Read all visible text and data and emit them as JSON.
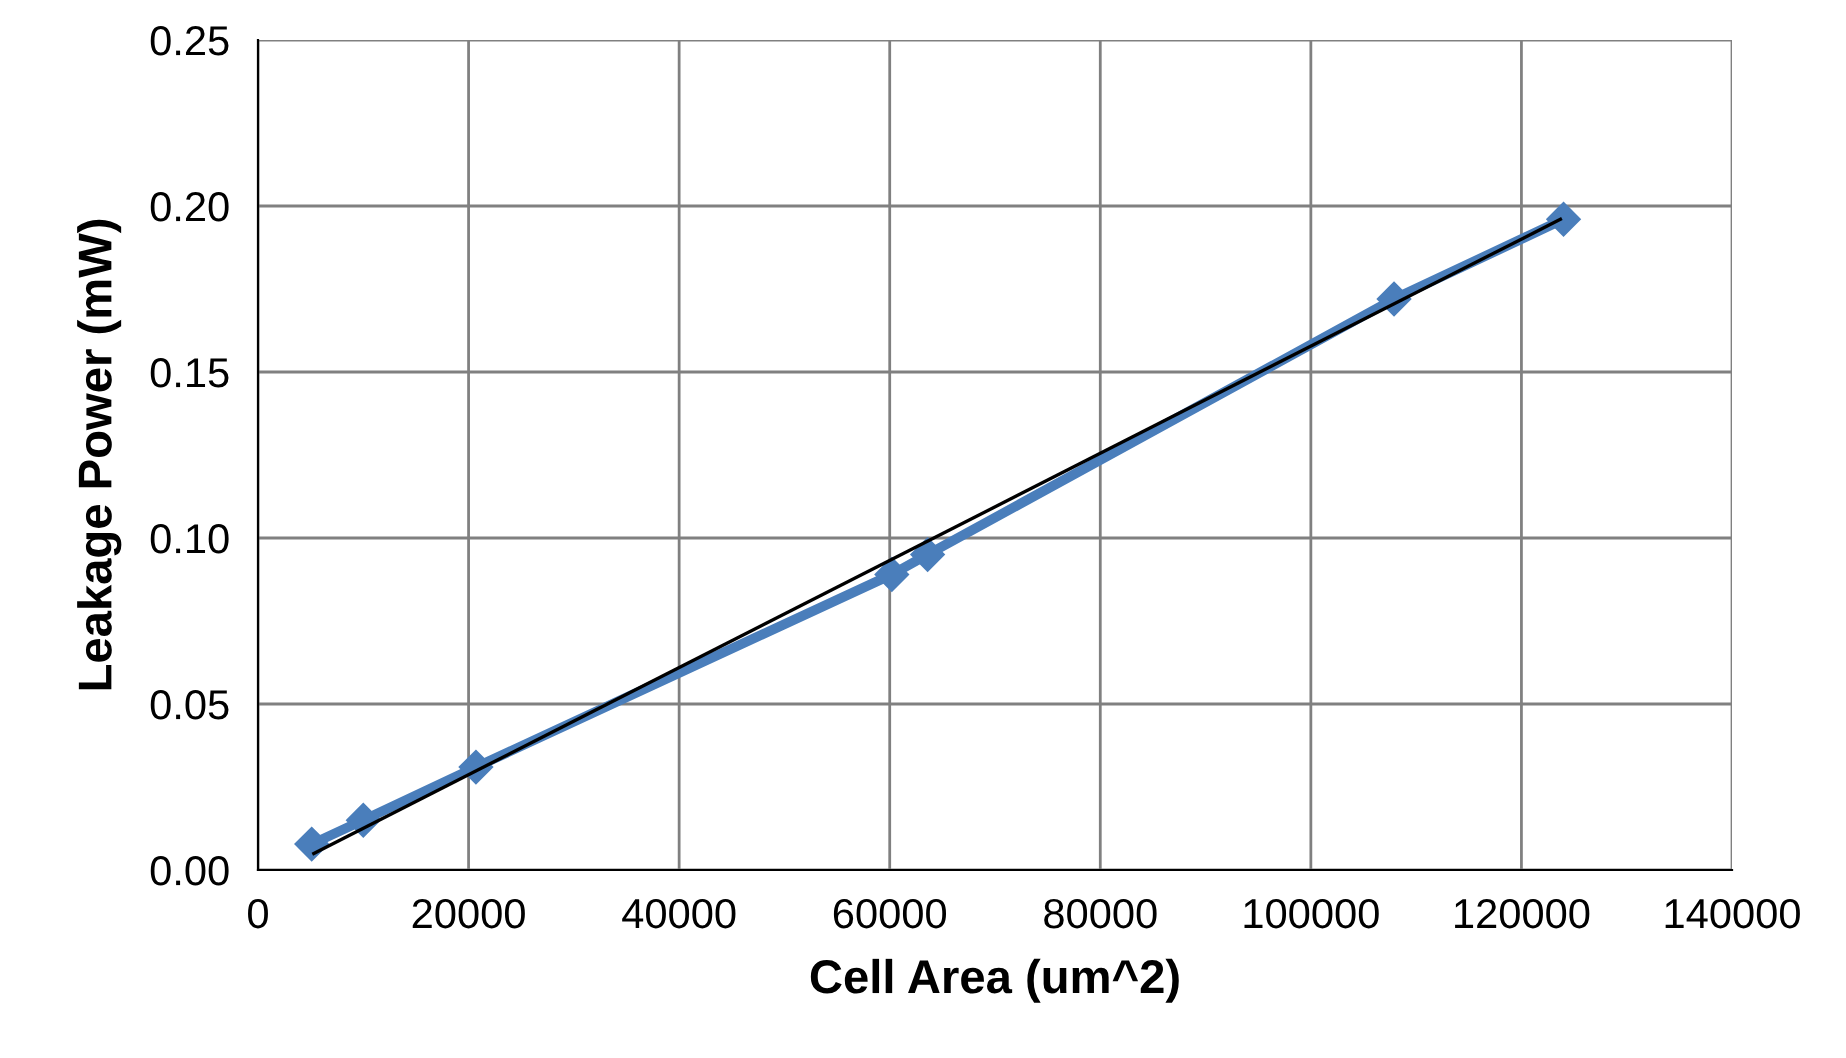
{
  "chart_data": {
    "type": "line",
    "xlabel": "Cell Area (um^2)",
    "ylabel": "Leakage Power (mW)",
    "series": [
      {
        "color": "#4a7ebb",
        "marker": "diamond",
        "x": [
          5100,
          10000,
          20700,
          60200,
          63600,
          107900,
          124000
        ],
        "values": [
          0.0078,
          0.015,
          0.031,
          0.089,
          0.095,
          0.172,
          0.196
        ]
      },
      {
        "color": "#000000",
        "marker": "none",
        "x": [
          5300,
          123700
        ],
        "values": [
          0.005,
          0.196
        ]
      }
    ],
    "xlim": [
      0,
      140000
    ],
    "xticks": [
      0,
      20000,
      40000,
      60000,
      80000,
      100000,
      120000,
      140000
    ],
    "ylim": [
      0,
      0.25
    ],
    "yticks": [
      {
        "value": 0,
        "label": "0.00"
      },
      {
        "value": 0.05,
        "label": "0.05"
      },
      {
        "value": 0.1,
        "label": "0.10"
      },
      {
        "value": 0.15,
        "label": "0.15"
      },
      {
        "value": 0.2,
        "label": "0.20"
      },
      {
        "value": 0.25,
        "label": "0.25"
      }
    ],
    "grid": true,
    "line_style": "solid"
  }
}
